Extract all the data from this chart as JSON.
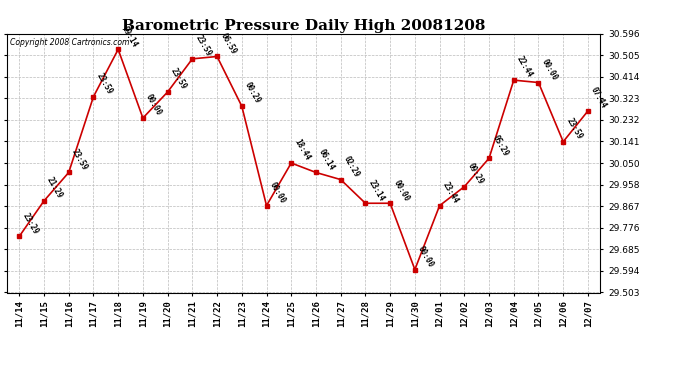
{
  "title": "Barometric Pressure Daily High 20081208",
  "copyright": "Copyright 2008 Cartronics.com",
  "background_color": "#ffffff",
  "plot_bg_color": "#ffffff",
  "grid_color": "#bbbbbb",
  "line_color": "#cc0000",
  "marker_color": "#cc0000",
  "x_labels": [
    "11/14",
    "11/15",
    "11/16",
    "11/17",
    "11/18",
    "11/19",
    "11/20",
    "11/21",
    "11/22",
    "11/23",
    "11/24",
    "11/25",
    "11/26",
    "11/27",
    "11/28",
    "11/29",
    "11/30",
    "12/01",
    "12/02",
    "12/03",
    "12/04",
    "12/05",
    "12/06",
    "12/07"
  ],
  "y_values": [
    29.74,
    29.89,
    30.01,
    30.33,
    30.53,
    30.24,
    30.35,
    30.49,
    30.5,
    30.29,
    29.87,
    30.05,
    30.01,
    29.98,
    29.88,
    29.88,
    29.6,
    29.87,
    29.95,
    30.07,
    30.4,
    30.39,
    30.14,
    30.27
  ],
  "point_labels": [
    "23:29",
    "21:29",
    "23:59",
    "23:59",
    "09:14",
    "00:00",
    "23:59",
    "23:59",
    "06:59",
    "00:29",
    "00:00",
    "18:44",
    "06:14",
    "02:29",
    "23:14",
    "00:00",
    "00:00",
    "23:44",
    "09:29",
    "05:29",
    "22:44",
    "00:00",
    "23:59",
    "07:44"
  ],
  "ylim_min": 29.503,
  "ylim_max": 30.596,
  "yticks": [
    29.503,
    29.594,
    29.685,
    29.776,
    29.867,
    29.958,
    30.05,
    30.141,
    30.232,
    30.323,
    30.414,
    30.505,
    30.596
  ],
  "title_fontsize": 11,
  "label_fontsize": 5.5,
  "tick_fontsize": 6.5,
  "copyright_fontsize": 5.5
}
